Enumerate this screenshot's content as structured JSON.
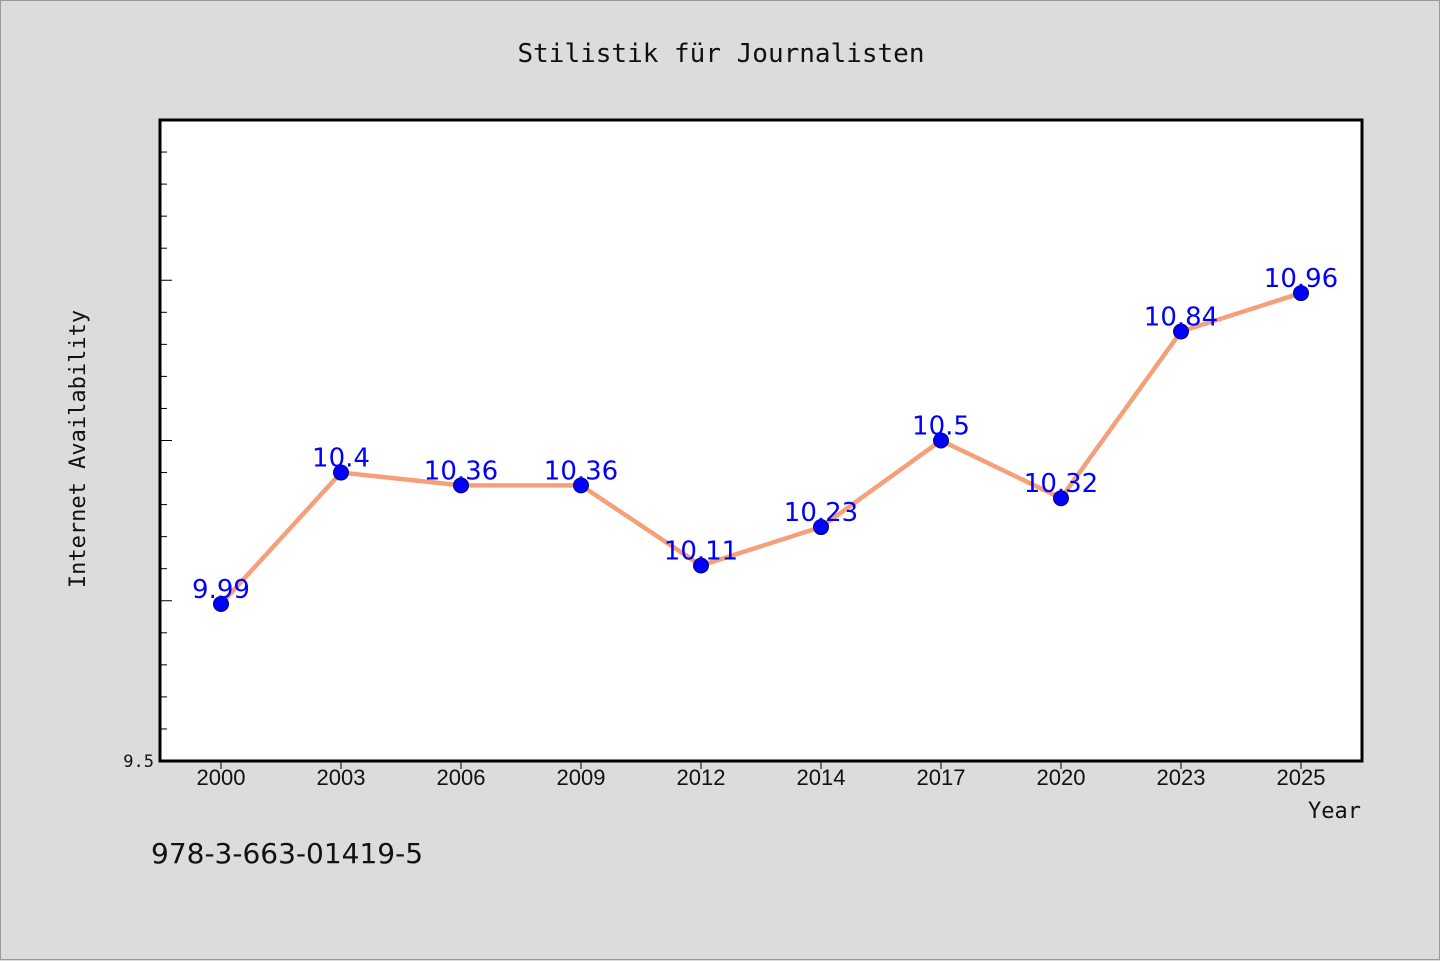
{
  "chart_data": {
    "type": "line",
    "title": "Stilistik für Journalisten",
    "xlabel": "Year",
    "ylabel": "Internet Availability",
    "categories": [
      "2000",
      "2003",
      "2006",
      "2009",
      "2012",
      "2014",
      "2017",
      "2020",
      "2023",
      "2025"
    ],
    "series": [
      {
        "values": [
          9.99,
          10.4,
          10.36,
          10.36,
          10.11,
          10.23,
          10.5,
          10.32,
          10.84,
          10.96
        ],
        "labels": [
          "9.99",
          "10.4",
          "10.36",
          "10.36",
          "10.11",
          "10.23",
          "10.5",
          "10.32",
          "10.84",
          "10.96"
        ],
        "line_color": "#f4a07a",
        "marker_color": "#0000ff"
      }
    ],
    "ylim": [
      9.5,
      11.5
    ],
    "yticks_labeled": [
      {
        "value": 9.5,
        "label": "9.5"
      }
    ],
    "grid": false,
    "legend": "none"
  },
  "footer": {
    "isbn": "978-3-663-01419-5"
  },
  "colors": {
    "background": "#dcdcdc",
    "plot_background": "#ffffff",
    "axis": "#000000"
  }
}
